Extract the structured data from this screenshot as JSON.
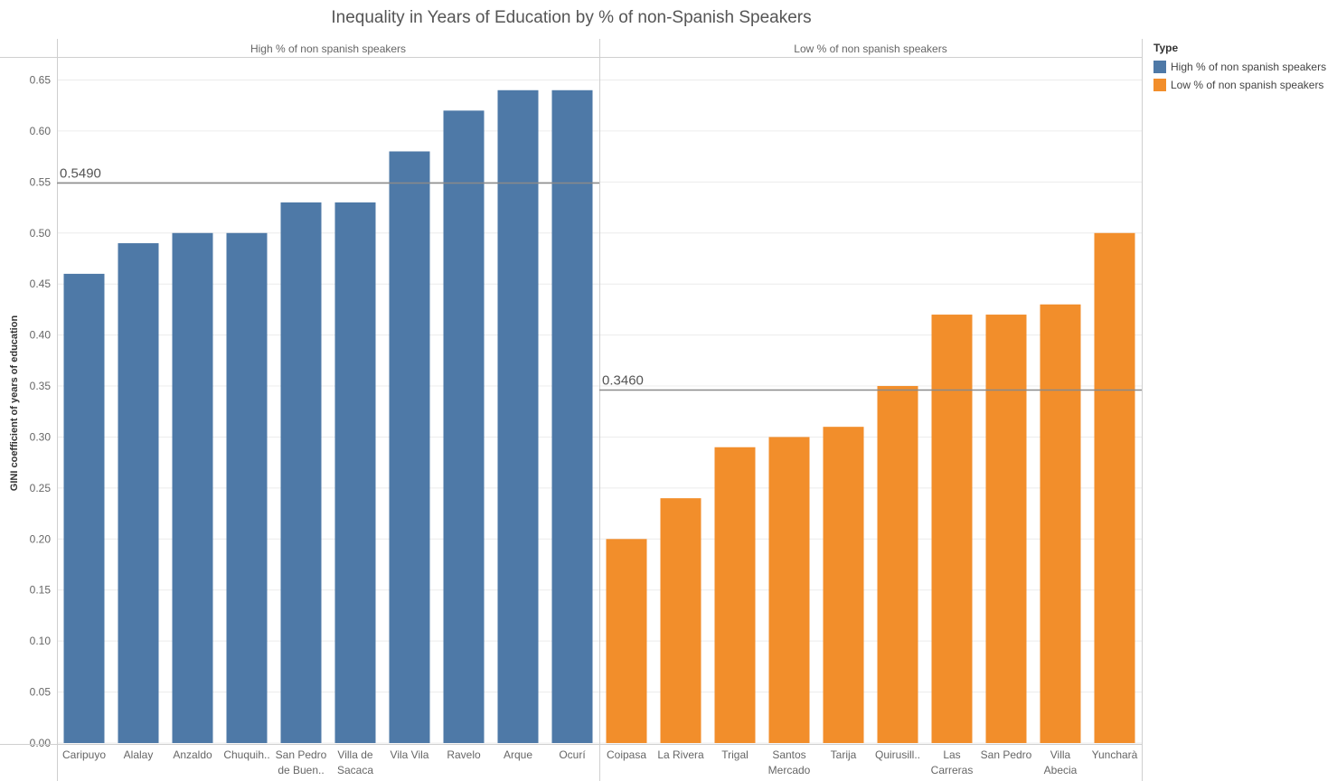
{
  "colors": {
    "high": "#4e79a7",
    "low": "#f28e2b"
  },
  "chart_data": {
    "type": "bar",
    "title": "Inequality in Years of Education by % of non-Spanish Speakers",
    "ylabel": "GINI coefficient of years of education",
    "ylim": [
      0,
      0.65
    ],
    "yticks": [
      "0.00",
      "0.05",
      "0.10",
      "0.15",
      "0.20",
      "0.25",
      "0.30",
      "0.35",
      "0.40",
      "0.45",
      "0.50",
      "0.55",
      "0.60",
      "0.65"
    ],
    "grid": true,
    "legend": {
      "title": "Type",
      "position": "right",
      "entries": [
        "High % of non spanish speakers",
        "Low % of non spanish speakers"
      ]
    },
    "panels": [
      {
        "label": "High % of non spanish speakers",
        "color": "#4e79a7",
        "categories": [
          [
            "Caripuyo"
          ],
          [
            "Alalay"
          ],
          [
            "Anzaldo"
          ],
          [
            "Chuquih.."
          ],
          [
            "San Pedro",
            "de Buen.."
          ],
          [
            "Villa de",
            "Sacaca"
          ],
          [
            "Vila Vila"
          ],
          [
            "Ravelo"
          ],
          [
            "Arque"
          ],
          [
            "Ocurí"
          ]
        ],
        "values": [
          0.46,
          0.49,
          0.5,
          0.5,
          0.53,
          0.53,
          0.58,
          0.62,
          0.64,
          0.64
        ],
        "reference_line": {
          "value": 0.549,
          "label": "0.5490"
        }
      },
      {
        "label": "Low % of non spanish speakers",
        "color": "#f28e2b",
        "categories": [
          [
            "Coipasa"
          ],
          [
            "La Rivera"
          ],
          [
            "Trigal"
          ],
          [
            "Santos",
            "Mercado"
          ],
          [
            "Tarija"
          ],
          [
            "Quirusill.."
          ],
          [
            "Las",
            "Carreras"
          ],
          [
            "San Pedro"
          ],
          [
            "Villa",
            "Abecia"
          ],
          [
            "Yuncharà"
          ]
        ],
        "values": [
          0.2,
          0.24,
          0.29,
          0.3,
          0.31,
          0.35,
          0.42,
          0.42,
          0.43,
          0.5
        ],
        "reference_line": {
          "value": 0.346,
          "label": "0.3460"
        }
      }
    ]
  }
}
